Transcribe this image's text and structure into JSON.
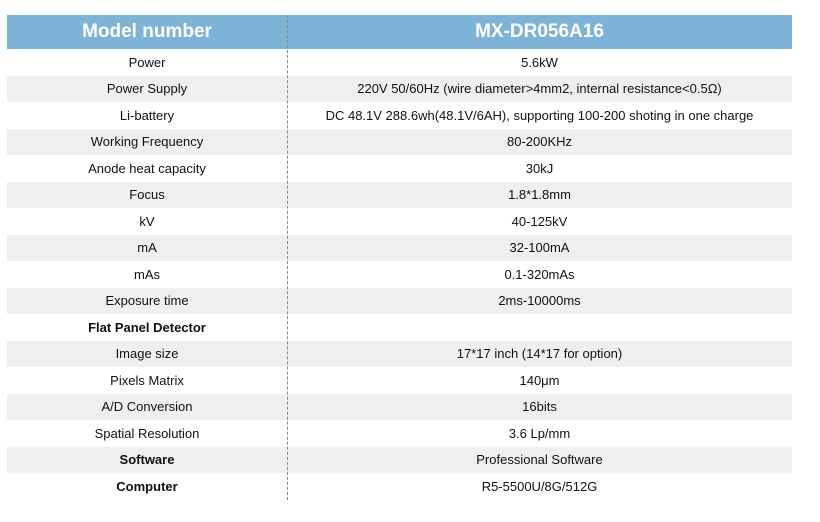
{
  "header": {
    "label": "Model number",
    "value": "MX-DR056A16"
  },
  "colors": {
    "header_bg": "#7db3d6",
    "stripe": "#efefef"
  },
  "rows": [
    {
      "label": "Power",
      "value": "5.6kW",
      "bold": false
    },
    {
      "label": "Power Supply",
      "value": "220V 50/60Hz (wire diameter>4mm2, internal resistance<0.5Ω)",
      "bold": false
    },
    {
      "label": "Li-battery",
      "value": "DC 48.1V 288.6wh(48.1V/6AH), supporting 100-200 shoting in one charge",
      "bold": false
    },
    {
      "label": "Working Frequency",
      "value": "80-200KHz",
      "bold": false
    },
    {
      "label": "Anode heat capacity",
      "value": "30kJ",
      "bold": false
    },
    {
      "label": "Focus",
      "value": "1.8*1.8mm",
      "bold": false
    },
    {
      "label": "kV",
      "value": "40-125kV",
      "bold": false
    },
    {
      "label": "mA",
      "value": "32-100mA",
      "bold": false
    },
    {
      "label": "mAs",
      "value": "0.1-320mAs",
      "bold": false
    },
    {
      "label": "Exposure time",
      "value": "2ms-10000ms",
      "bold": false
    },
    {
      "label": "Flat Panel Detector",
      "value": "",
      "bold": true
    },
    {
      "label": "Image size",
      "value": "17*17 inch (14*17 for option)",
      "bold": false
    },
    {
      "label": "Pixels Matrix",
      "value": "140μm",
      "bold": false
    },
    {
      "label": "A/D Conversion",
      "value": "16bits",
      "bold": false
    },
    {
      "label": "Spatial Resolution",
      "value": "3.6 Lp/mm",
      "bold": false
    },
    {
      "label": "Software",
      "value": "Professional Software",
      "bold": true
    },
    {
      "label": "Computer",
      "value": "R5-5500U/8G/512G",
      "bold": true
    }
  ]
}
